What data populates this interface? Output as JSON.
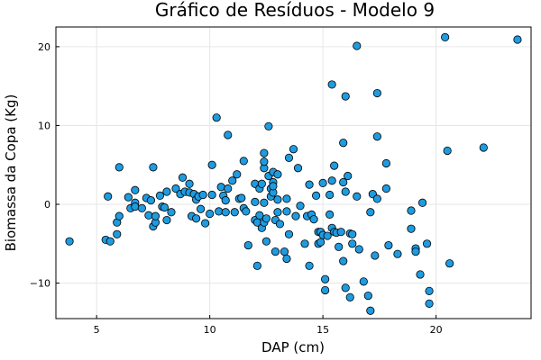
{
  "chart_data": {
    "type": "scatter",
    "title": "Gráfico de Resíduos - Modelo 9",
    "xlabel": "DAP (cm)",
    "ylabel": "Biomassa da Copa (Kg)",
    "xlim": [
      3.2,
      24.2
    ],
    "ylim": [
      -14.5,
      22.5
    ],
    "xticks": [
      5,
      10,
      15,
      20
    ],
    "yticks": [
      -10,
      0,
      10,
      20
    ],
    "grid": true,
    "legend": false,
    "marker_color": "#1f9be0",
    "points": [
      [
        3.8,
        -4.7
      ],
      [
        5.4,
        -4.5
      ],
      [
        5.5,
        1.0
      ],
      [
        5.6,
        -4.7
      ],
      [
        5.9,
        -3.8
      ],
      [
        5.9,
        -2.3
      ],
      [
        6.0,
        -1.5
      ],
      [
        6.0,
        4.7
      ],
      [
        6.4,
        0.9
      ],
      [
        6.5,
        -0.5
      ],
      [
        6.7,
        1.8
      ],
      [
        6.7,
        0.2
      ],
      [
        6.7,
        -0.3
      ],
      [
        7.0,
        -0.5
      ],
      [
        7.2,
        0.8
      ],
      [
        7.3,
        -1.4
      ],
      [
        7.4,
        0.5
      ],
      [
        7.5,
        -2.8
      ],
      [
        7.5,
        4.7
      ],
      [
        7.6,
        -2.3
      ],
      [
        7.6,
        -1.5
      ],
      [
        7.8,
        1.1
      ],
      [
        7.9,
        -0.3
      ],
      [
        8.0,
        -0.4
      ],
      [
        8.1,
        -2.0
      ],
      [
        8.1,
        1.6
      ],
      [
        8.3,
        -1.0
      ],
      [
        8.5,
        2.0
      ],
      [
        8.7,
        1.3
      ],
      [
        8.8,
        3.4
      ],
      [
        8.9,
        1.6
      ],
      [
        9.1,
        2.6
      ],
      [
        9.1,
        1.5
      ],
      [
        9.2,
        -1.5
      ],
      [
        9.3,
        1.3
      ],
      [
        9.4,
        0.6
      ],
      [
        9.4,
        -1.8
      ],
      [
        9.5,
        1.0
      ],
      [
        9.6,
        -0.6
      ],
      [
        9.7,
        1.2
      ],
      [
        9.8,
        -2.4
      ],
      [
        10.0,
        -1.2
      ],
      [
        10.1,
        5.0
      ],
      [
        10.1,
        1.2
      ],
      [
        10.3,
        11.0
      ],
      [
        10.4,
        -0.9
      ],
      [
        10.5,
        2.2
      ],
      [
        10.6,
        1.1
      ],
      [
        10.7,
        -1.0
      ],
      [
        10.7,
        0.5
      ],
      [
        10.8,
        8.8
      ],
      [
        10.8,
        2.0
      ],
      [
        11.0,
        3.0
      ],
      [
        11.1,
        -1.0
      ],
      [
        11.2,
        3.8
      ],
      [
        11.3,
        0.7
      ],
      [
        11.4,
        0.8
      ],
      [
        11.5,
        5.5
      ],
      [
        11.5,
        -0.5
      ],
      [
        11.6,
        -0.9
      ],
      [
        11.7,
        -5.2
      ],
      [
        12.0,
        -2.0
      ],
      [
        12.0,
        2.6
      ],
      [
        12.0,
        0.3
      ],
      [
        12.1,
        -7.8
      ],
      [
        12.1,
        -2.3
      ],
      [
        12.2,
        -1.4
      ],
      [
        12.2,
        2.0
      ],
      [
        12.3,
        2.6
      ],
      [
        12.3,
        -3.0
      ],
      [
        12.4,
        4.6
      ],
      [
        12.4,
        6.5
      ],
      [
        12.4,
        5.4
      ],
      [
        12.4,
        0.2
      ],
      [
        12.4,
        -2.3
      ],
      [
        12.5,
        -1.8
      ],
      [
        12.5,
        -4.7
      ],
      [
        12.6,
        3.6
      ],
      [
        12.6,
        9.9
      ],
      [
        12.7,
        1.0
      ],
      [
        12.7,
        2.0
      ],
      [
        12.8,
        4.1
      ],
      [
        12.8,
        2.8
      ],
      [
        12.8,
        1.5
      ],
      [
        12.8,
        2.3
      ],
      [
        12.9,
        -6.0
      ],
      [
        12.9,
        -2.0
      ],
      [
        13.0,
        3.8
      ],
      [
        13.0,
        -1.0
      ],
      [
        13.0,
        0.6
      ],
      [
        13.1,
        -2.5
      ],
      [
        13.3,
        -6.0
      ],
      [
        13.4,
        0.7
      ],
      [
        13.4,
        -0.9
      ],
      [
        13.4,
        -6.9
      ],
      [
        13.5,
        5.9
      ],
      [
        13.5,
        -3.8
      ],
      [
        13.7,
        7.0
      ],
      [
        13.8,
        -1.5
      ],
      [
        13.9,
        4.6
      ],
      [
        14.0,
        -0.2
      ],
      [
        14.2,
        -5.0
      ],
      [
        14.3,
        -1.5
      ],
      [
        14.4,
        2.5
      ],
      [
        14.4,
        -7.8
      ],
      [
        14.5,
        -1.3
      ],
      [
        14.6,
        -1.9
      ],
      [
        14.7,
        1.1
      ],
      [
        14.8,
        -3.5
      ],
      [
        14.8,
        -5.0
      ],
      [
        14.9,
        -3.5
      ],
      [
        14.9,
        -4.8
      ],
      [
        15.0,
        2.7
      ],
      [
        15.0,
        -3.9
      ],
      [
        15.1,
        -10.9
      ],
      [
        15.1,
        -9.5
      ],
      [
        15.2,
        -4.0
      ],
      [
        15.3,
        -1.3
      ],
      [
        15.3,
        1.2
      ],
      [
        15.4,
        3.0
      ],
      [
        15.4,
        15.2
      ],
      [
        15.4,
        -3.0
      ],
      [
        15.5,
        -3.5
      ],
      [
        15.5,
        4.9
      ],
      [
        15.6,
        -3.6
      ],
      [
        15.7,
        -5.4
      ],
      [
        15.8,
        -3.5
      ],
      [
        15.9,
        -7.2
      ],
      [
        15.9,
        7.8
      ],
      [
        15.9,
        2.8
      ],
      [
        16.0,
        13.7
      ],
      [
        16.0,
        1.6
      ],
      [
        16.0,
        -10.6
      ],
      [
        16.1,
        3.6
      ],
      [
        16.2,
        -3.7
      ],
      [
        16.2,
        -11.8
      ],
      [
        16.3,
        -5.0
      ],
      [
        16.3,
        -3.8
      ],
      [
        16.5,
        20.1
      ],
      [
        16.5,
        1.0
      ],
      [
        16.6,
        -5.7
      ],
      [
        16.8,
        -9.8
      ],
      [
        17.0,
        -11.6
      ],
      [
        17.1,
        -13.5
      ],
      [
        17.1,
        -1.0
      ],
      [
        17.2,
        1.3
      ],
      [
        17.3,
        -6.5
      ],
      [
        17.4,
        0.7
      ],
      [
        17.4,
        14.1
      ],
      [
        17.4,
        8.6
      ],
      [
        17.8,
        5.2
      ],
      [
        17.8,
        2.0
      ],
      [
        17.9,
        -5.2
      ],
      [
        18.3,
        -6.3
      ],
      [
        18.9,
        -3.1
      ],
      [
        18.9,
        -0.8
      ],
      [
        19.1,
        -5.6
      ],
      [
        19.1,
        -6.0
      ],
      [
        19.3,
        -8.9
      ],
      [
        19.4,
        0.2
      ],
      [
        19.6,
        -5.0
      ],
      [
        19.7,
        -11.0
      ],
      [
        19.7,
        -12.6
      ],
      [
        20.4,
        21.2
      ],
      [
        20.5,
        6.8
      ],
      [
        20.6,
        -7.5
      ],
      [
        22.1,
        7.2
      ],
      [
        23.6,
        20.9
      ]
    ]
  }
}
